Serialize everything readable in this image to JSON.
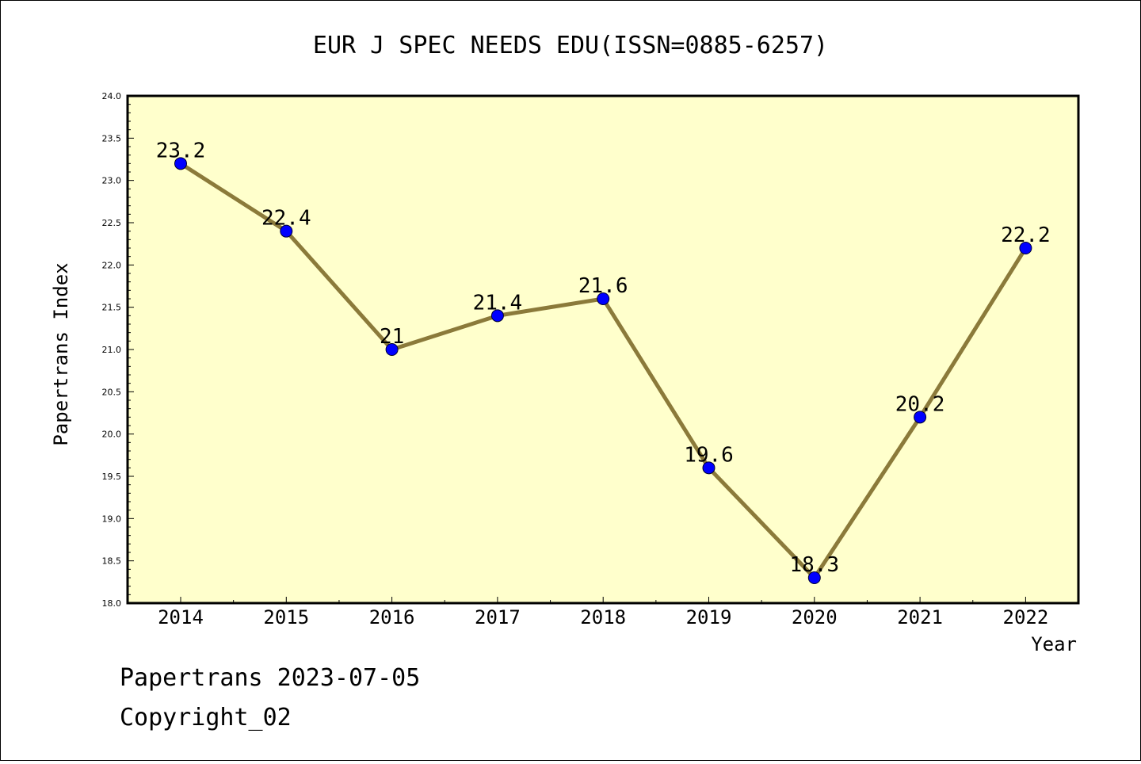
{
  "footer": {
    "line1": "Papertrans 2023-07-05",
    "line2": "Copyright_02"
  },
  "colors": {
    "plot_background": "#ffffcc",
    "line": "#8b7a3a",
    "marker": "#0000ff",
    "frame": "#000000"
  },
  "chart_data": {
    "type": "line",
    "title": "EUR J SPEC NEEDS EDU(ISSN=0885-6257)",
    "xlabel": "Year",
    "ylabel": "Papertrans Index",
    "categories": [
      "2014",
      "2015",
      "2016",
      "2017",
      "2018",
      "2019",
      "2020",
      "2021",
      "2022"
    ],
    "series": [
      {
        "values": [
          23.2,
          22.4,
          21.0,
          21.4,
          21.6,
          19.6,
          18.3,
          20.2,
          22.2
        ],
        "data_labels": [
          "23.2",
          "22.4",
          "21",
          "21.4",
          "21.6",
          "19.6",
          "18.3",
          "20.2",
          "22.2"
        ]
      }
    ],
    "ylim": [
      18.0,
      24.0
    ],
    "yticks": [
      "18.0",
      "18.5",
      "19.0",
      "19.5",
      "20.0",
      "20.5",
      "21.0",
      "21.5",
      "22.0",
      "22.5",
      "23.0",
      "23.5",
      "24.0"
    ],
    "grid": false,
    "legend": "none"
  }
}
